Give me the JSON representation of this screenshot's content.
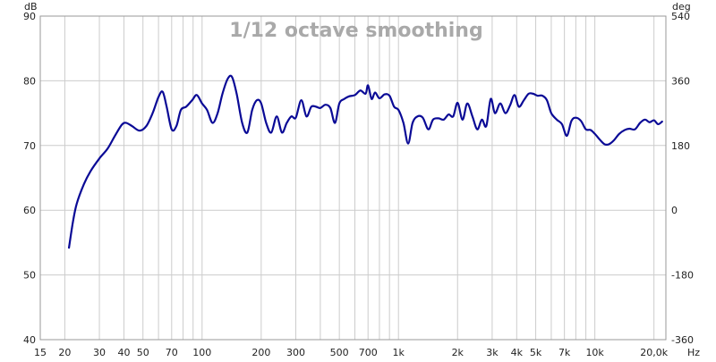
{
  "chart_data": {
    "type": "line",
    "title": "1/12 octave smoothing",
    "x_scale": "log",
    "xlim": [
      15,
      23000
    ],
    "ylim": [
      40,
      90
    ],
    "y2lim": [
      -360,
      540
    ],
    "left_unit": "dB",
    "right_unit": "deg",
    "x_unit": "Hz",
    "grid": true,
    "x_ticks": [
      {
        "value": 15,
        "label": "15"
      },
      {
        "value": 20,
        "label": "20"
      },
      {
        "value": 30,
        "label": "30"
      },
      {
        "value": 40,
        "label": "40"
      },
      {
        "value": 50,
        "label": "50"
      },
      {
        "value": 70,
        "label": "70"
      },
      {
        "value": 100,
        "label": "100"
      },
      {
        "value": 200,
        "label": "200"
      },
      {
        "value": 300,
        "label": "300"
      },
      {
        "value": 500,
        "label": "500"
      },
      {
        "value": 700,
        "label": "700"
      },
      {
        "value": 1000,
        "label": "1k"
      },
      {
        "value": 2000,
        "label": "2k"
      },
      {
        "value": 3000,
        "label": "3k"
      },
      {
        "value": 4000,
        "label": "4k"
      },
      {
        "value": 5000,
        "label": "5k"
      },
      {
        "value": 7000,
        "label": "7k"
      },
      {
        "value": 10000,
        "label": "10k"
      },
      {
        "value": 20000,
        "label": "20,0k"
      }
    ],
    "y_ticks": [
      40,
      50,
      60,
      70,
      80,
      90
    ],
    "y2_ticks": [
      -360,
      -180,
      0,
      180,
      360,
      540
    ],
    "colors": {
      "line": "#0a0a96",
      "grid": "#cccccc",
      "title": "#a9a9a9"
    },
    "series": [
      {
        "name": "",
        "x": [
          21,
          22,
          23,
          25,
          27,
          30,
          33,
          36,
          39,
          41,
          44,
          48,
          52,
          56,
          60,
          63,
          66,
          70,
          74,
          78,
          83,
          89,
          94,
          100,
          106,
          113,
          120,
          127,
          135,
          142,
          150,
          160,
          170,
          180,
          190,
          200,
          212,
          225,
          240,
          255,
          270,
          285,
          300,
          320,
          340,
          360,
          380,
          400,
          425,
          450,
          475,
          500,
          530,
          560,
          600,
          640,
          680,
          700,
          730,
          760,
          800,
          850,
          900,
          950,
          1000,
          1060,
          1120,
          1180,
          1250,
          1330,
          1420,
          1500,
          1600,
          1700,
          1800,
          1900,
          2000,
          2120,
          2240,
          2380,
          2520,
          2660,
          2800,
          2950,
          3100,
          3300,
          3500,
          3700,
          3900,
          4100,
          4350,
          4600,
          4850,
          5100,
          5400,
          5700,
          6000,
          6400,
          6800,
          7200,
          7600,
          8000,
          8500,
          9000,
          9500,
          10000,
          10600,
          11200,
          11800,
          12500,
          13300,
          14200,
          15000,
          16000,
          17000,
          18000,
          19000,
          20000,
          21000,
          22000
        ],
        "values": [
          54.2,
          58.2,
          61,
          64,
          66,
          68,
          69.5,
          71.5,
          73.2,
          73.5,
          73,
          72.3,
          73,
          75,
          77.5,
          78.3,
          76,
          72.5,
          73,
          75.5,
          76,
          77,
          77.8,
          76.5,
          75.5,
          73.5,
          75,
          78,
          80.3,
          80.6,
          78,
          73.5,
          72,
          75.5,
          77,
          76.5,
          73.5,
          72,
          74.5,
          72,
          73.5,
          74.5,
          74.3,
          77,
          74.5,
          76,
          76,
          75.8,
          76.3,
          75.8,
          73.5,
          76.5,
          77.2,
          77.6,
          77.8,
          78.5,
          78,
          79.3,
          77.2,
          78.2,
          77.3,
          77.9,
          77.7,
          76,
          75.5,
          73.5,
          70.3,
          73.5,
          74.5,
          74.3,
          72.5,
          74,
          74.2,
          74,
          74.8,
          74.5,
          76.6,
          74,
          76.5,
          74.5,
          72.5,
          74,
          73,
          77.2,
          75,
          76.5,
          75,
          76.2,
          77.8,
          76,
          77,
          78,
          78,
          77.7,
          77.7,
          77,
          75,
          74,
          73.3,
          71.5,
          73.8,
          74.3,
          73.8,
          72.5,
          72.4,
          71.8,
          70.9,
          70.2,
          70.2,
          70.8,
          71.8,
          72.4,
          72.6,
          72.5,
          73.5,
          74,
          73.6,
          73.9,
          73.3,
          73.7
        ]
      }
    ]
  }
}
